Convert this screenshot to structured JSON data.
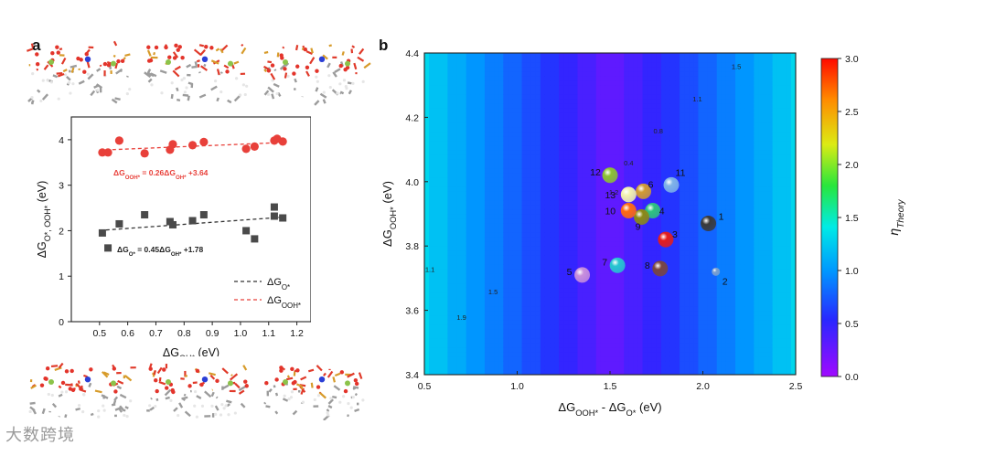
{
  "panels": {
    "a_label": "a",
    "b_label": "b"
  },
  "watermark": "大数跨境",
  "chart_data": [
    {
      "type": "scatter",
      "id": "panel-a",
      "xlabel": "ΔG",
      "xlabel_sub": "OH*",
      "xlabel_unit": " (eV)",
      "ylabel": "ΔG",
      "ylabel_sub": "O*, OOH*",
      "ylabel_unit": " (eV)",
      "xlim": [
        0.4,
        1.25
      ],
      "ylim": [
        0,
        4.5
      ],
      "xticks": [
        "0.5",
        "0.6",
        "0.7",
        "0.8",
        "0.9",
        "1.0",
        "1.1",
        "1.2"
      ],
      "xtick_values": [
        0.5,
        0.6,
        0.7,
        0.8,
        0.9,
        1.0,
        1.1,
        1.2
      ],
      "yticks": [
        "0",
        "1",
        "2",
        "3",
        "4"
      ],
      "ytick_values": [
        0,
        1,
        2,
        3,
        4
      ],
      "series": [
        {
          "name": "ΔG",
          "name_sub": "O*",
          "marker": "square",
          "color": "#4a4a4a",
          "x": [
            0.51,
            0.53,
            0.57,
            0.66,
            0.75,
            0.76,
            0.83,
            0.87,
            1.02,
            1.05,
            1.12,
            1.12,
            1.15
          ],
          "y": [
            1.95,
            1.62,
            2.15,
            2.35,
            2.2,
            2.13,
            2.22,
            2.35,
            2.0,
            1.82,
            2.52,
            2.32,
            2.28
          ],
          "fit": {
            "slope": 0.45,
            "intercept": 1.78,
            "color": "#333333",
            "label_main": "ΔG",
            "label_sub": "O*",
            "label_mid": " = 0.45ΔG",
            "label_sub2": "OH*",
            "label_end": " +1.78"
          }
        },
        {
          "name": "ΔG",
          "name_sub": "OOH*",
          "marker": "circle",
          "color": "#e8403a",
          "x": [
            0.51,
            0.53,
            0.57,
            0.66,
            0.75,
            0.76,
            0.83,
            0.87,
            1.02,
            1.05,
            1.12,
            1.13,
            1.15
          ],
          "y": [
            3.72,
            3.72,
            3.98,
            3.7,
            3.78,
            3.9,
            3.88,
            3.95,
            3.8,
            3.85,
            3.98,
            4.02,
            3.96
          ],
          "fit": {
            "slope": 0.26,
            "intercept": 3.64,
            "color": "#e8403a",
            "label_main": "ΔG",
            "label_sub": "OOH*",
            "label_mid": " = 0.26ΔG",
            "label_sub2": "OH*",
            "label_end": " +3.64"
          }
        }
      ],
      "legend": "bottom-right"
    },
    {
      "type": "heatmap",
      "id": "panel-b",
      "xlabel": "ΔG",
      "xlabel_sub1": "OOH*",
      "xlabel_mid": " - ΔG",
      "xlabel_sub2": "O*",
      "xlabel_unit": " (eV)",
      "ylabel": "ΔG",
      "ylabel_sub": "OOH*",
      "ylabel_unit": " (eV)",
      "xlim": [
        0.5,
        2.5
      ],
      "ylim": [
        3.4,
        4.4
      ],
      "xticks": [
        "0.5",
        "1.0",
        "1.5",
        "2.0",
        "2.5"
      ],
      "xtick_values": [
        0.5,
        1.0,
        1.5,
        2.0,
        2.5
      ],
      "yticks": [
        "3.4",
        "3.6",
        "3.8",
        "4.0",
        "4.2",
        "4.4"
      ],
      "ytick_values": [
        3.4,
        3.6,
        3.8,
        4.0,
        4.2,
        4.4
      ],
      "contour_labels": [
        {
          "text": "1.5",
          "x": 2.18,
          "y": 4.35
        },
        {
          "text": "1.1",
          "x": 1.97,
          "y": 4.25
        },
        {
          "text": "0.8",
          "x": 1.76,
          "y": 4.15
        },
        {
          "text": "0.4",
          "x": 1.6,
          "y": 4.05
        },
        {
          "text": "1.2",
          "x": 1.52,
          "y": 3.96
        },
        {
          "text": "1.1",
          "x": 0.53,
          "y": 3.72
        },
        {
          "text": "1.5",
          "x": 0.37,
          "y": 3.65
        },
        {
          "text": "1.9",
          "x": 0.2,
          "y": 3.57
        }
      ],
      "points": [
        {
          "label": "1",
          "x": 2.03,
          "y": 3.87,
          "color": "#3a3a3a"
        },
        {
          "label": "2",
          "x": 2.07,
          "y": 3.72,
          "color": "#7a9fd0"
        },
        {
          "label": "3",
          "x": 1.8,
          "y": 3.82,
          "color": "#e31d1d"
        },
        {
          "label": "4",
          "x": 1.73,
          "y": 3.91,
          "color": "#2fc27f"
        },
        {
          "label": "5",
          "x": 1.35,
          "y": 3.71,
          "color": "#c88fdc"
        },
        {
          "label": "6",
          "x": 1.68,
          "y": 3.97,
          "color": "#d19b34"
        },
        {
          "label": "7",
          "x": 1.54,
          "y": 3.74,
          "color": "#25c6d0"
        },
        {
          "label": "8",
          "x": 1.77,
          "y": 3.73,
          "color": "#7a4640"
        },
        {
          "label": "9",
          "x": 1.67,
          "y": 3.89,
          "color": "#8b8a16"
        },
        {
          "label": "10",
          "x": 1.6,
          "y": 3.91,
          "color": "#ff6a12"
        },
        {
          "label": "11",
          "x": 1.83,
          "y": 3.99,
          "color": "#7fb3e8"
        },
        {
          "label": "12",
          "x": 1.5,
          "y": 4.02,
          "color": "#8cc332"
        },
        {
          "label": "13",
          "x": 1.6,
          "y": 3.96,
          "color": "#f3f2b0"
        }
      ],
      "colorbar": {
        "label": "η",
        "label_sub": "Theory",
        "range": [
          0.0,
          3.0
        ],
        "ticks": [
          "0.0",
          "0.5",
          "1.0",
          "1.5",
          "2.0",
          "2.5",
          "3.0"
        ],
        "tick_values": [
          0,
          0.5,
          1.0,
          1.5,
          2.0,
          2.5,
          3.0
        ]
      }
    }
  ]
}
